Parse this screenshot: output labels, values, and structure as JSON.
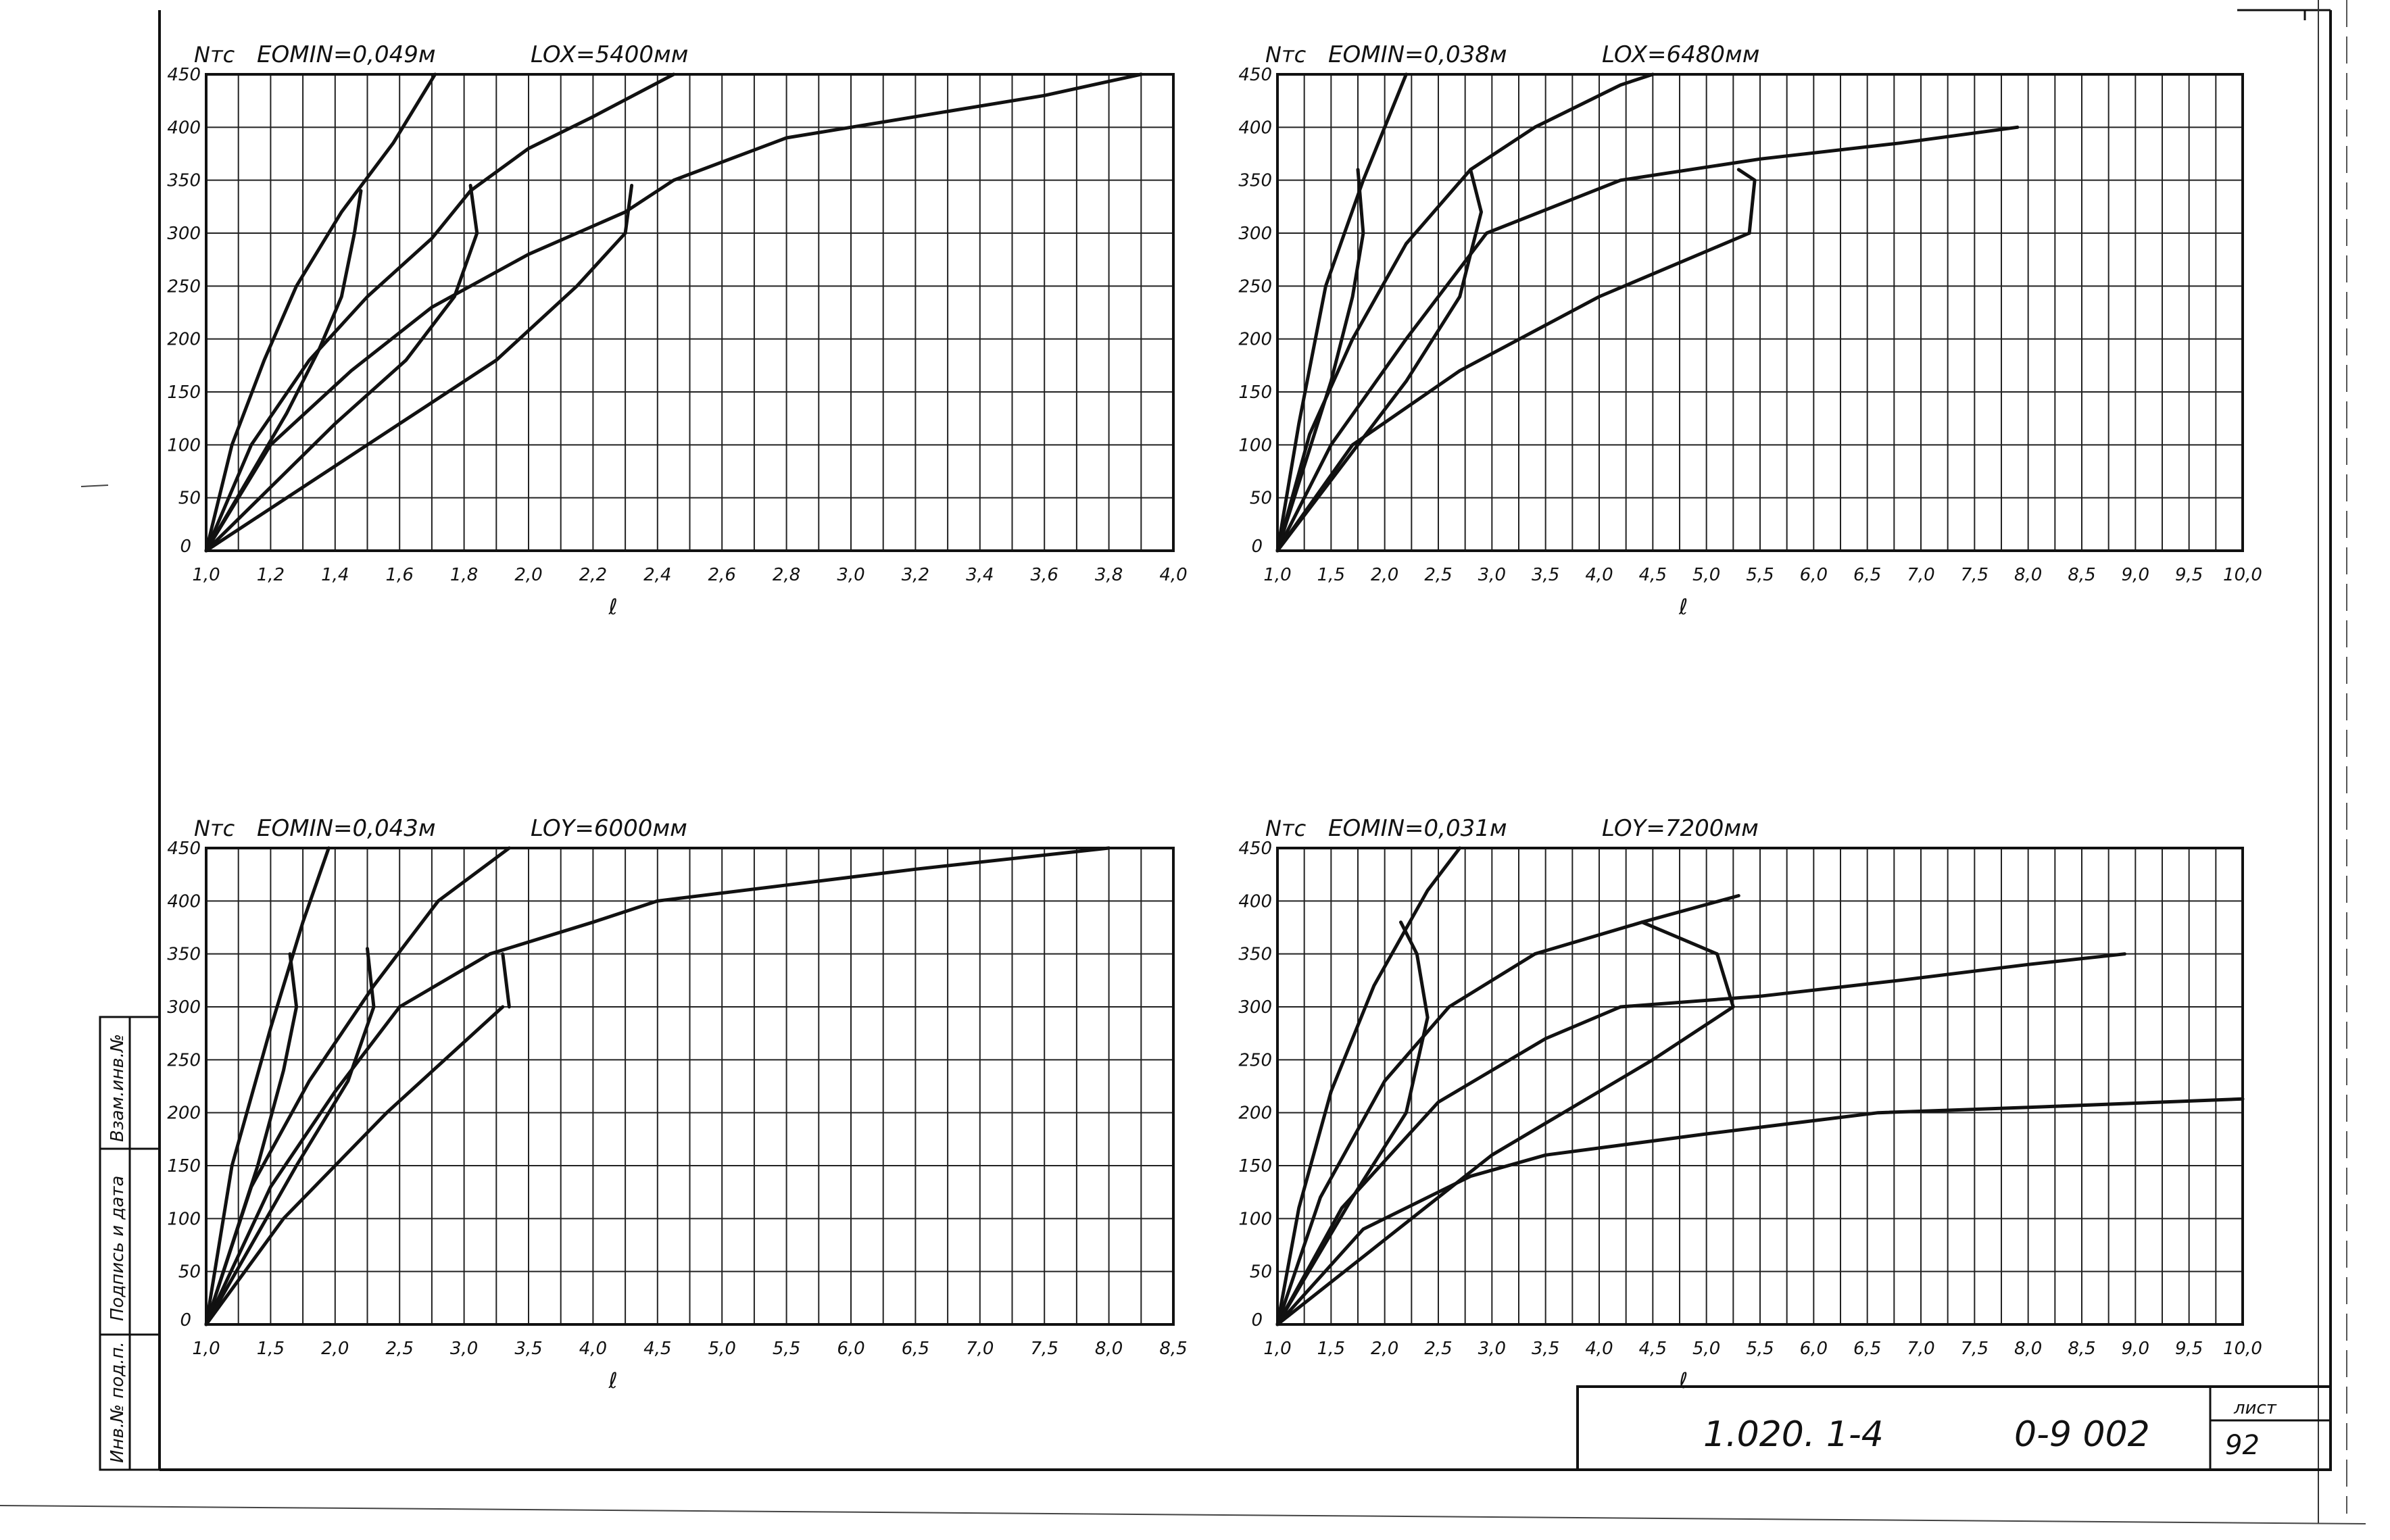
{
  "sheet": {
    "designation": "1.020. 1-4",
    "code": "0-9 002",
    "sheet_label": "лист",
    "sheet_number": "92",
    "side_stamp": [
      "Инв.№ под.п.",
      "Подпись и дата",
      "Взам.инв.№"
    ]
  },
  "chart_data": [
    {
      "type": "line",
      "ylabel": "Nтс",
      "xlabel": "ℓ",
      "annotations": [
        "EOMIN=0,049м",
        "LOX=5400мм"
      ],
      "xlim": [
        1.0,
        4.0
      ],
      "ylim": [
        0,
        450
      ],
      "grid": true,
      "x_ticks": [
        "1,0",
        "1,2",
        "1,4",
        "1,6",
        "1,8",
        "2,0",
        "2,2",
        "2,4",
        "2,6",
        "2,8",
        "3,0",
        "3,2",
        "3,4",
        "3,6",
        "3,8",
        "4,0"
      ],
      "y_ticks": [
        "0",
        "50",
        "100",
        "150",
        "200",
        "250",
        "300",
        "350",
        "400",
        "450"
      ],
      "series": [
        {
          "points": [
            [
              1.0,
              0
            ],
            [
              1.08,
              100
            ],
            [
              1.18,
              180
            ],
            [
              1.28,
              250
            ],
            [
              1.42,
              320
            ],
            [
              1.58,
              385
            ],
            [
              1.71,
              450
            ]
          ]
        },
        {
          "points": [
            [
              1.0,
              0
            ],
            [
              1.14,
              100
            ],
            [
              1.32,
              180
            ],
            [
              1.5,
              240
            ],
            [
              1.7,
              295
            ],
            [
              1.82,
              340
            ],
            [
              2.0,
              380
            ],
            [
              2.2,
              410
            ],
            [
              2.45,
              450
            ]
          ]
        },
        {
          "points": [
            [
              1.0,
              0
            ],
            [
              1.2,
              100
            ],
            [
              1.45,
              170
            ],
            [
              1.7,
              230
            ],
            [
              2.0,
              280
            ],
            [
              2.3,
              320
            ],
            [
              2.45,
              350
            ],
            [
              2.8,
              390
            ],
            [
              3.2,
              410
            ],
            [
              3.6,
              430
            ],
            [
              3.9,
              450
            ]
          ]
        },
        {
          "points": [
            [
              1.0,
              0
            ],
            [
              1.3,
              60
            ],
            [
              1.6,
              120
            ],
            [
              1.9,
              180
            ],
            [
              2.15,
              250
            ],
            [
              2.3,
              300
            ]
          ]
        },
        {
          "points": [
            [
              1.48,
              340
            ],
            [
              1.46,
              300
            ],
            [
              1.42,
              240
            ],
            [
              1.35,
              190
            ],
            [
              1.25,
              130
            ],
            [
              1.0,
              0
            ]
          ]
        },
        {
          "points": [
            [
              1.82,
              345
            ],
            [
              1.84,
              300
            ],
            [
              1.77,
              240
            ],
            [
              1.62,
              180
            ],
            [
              1.4,
              120
            ],
            [
              1.0,
              0
            ]
          ]
        },
        {
          "points": [
            [
              2.32,
              345
            ],
            [
              2.3,
              300
            ]
          ]
        }
      ]
    },
    {
      "type": "line",
      "ylabel": "Nтс",
      "xlabel": "ℓ",
      "annotations": [
        "EOMIN=0,038м",
        "LOX=6480мм"
      ],
      "xlim": [
        1.0,
        10.0
      ],
      "ylim": [
        0,
        450
      ],
      "grid": true,
      "x_ticks": [
        "1,0",
        "1,5",
        "2,0",
        "2,5",
        "3,0",
        "3,5",
        "4,0",
        "4,5",
        "5,0",
        "5,5",
        "6,0",
        "6,5",
        "7,0",
        "7,5",
        "8,0",
        "8,5",
        "9,0",
        "9,5",
        "10,0"
      ],
      "y_ticks": [
        "0",
        "50",
        "100",
        "150",
        "200",
        "250",
        "300",
        "350",
        "400",
        "450"
      ],
      "series": [
        {
          "points": [
            [
              1.0,
              0
            ],
            [
              1.2,
              120
            ],
            [
              1.45,
              250
            ],
            [
              1.8,
              350
            ],
            [
              2.2,
              450
            ]
          ]
        },
        {
          "points": [
            [
              1.0,
              0
            ],
            [
              1.3,
              110
            ],
            [
              1.7,
              200
            ],
            [
              2.2,
              290
            ],
            [
              2.8,
              360
            ],
            [
              3.4,
              400
            ],
            [
              4.2,
              440
            ],
            [
              4.5,
              450
            ]
          ]
        },
        {
          "points": [
            [
              1.0,
              0
            ],
            [
              1.5,
              100
            ],
            [
              2.2,
              200
            ],
            [
              2.95,
              300
            ],
            [
              4.2,
              350
            ],
            [
              5.5,
              370
            ],
            [
              6.8,
              385
            ],
            [
              7.9,
              400
            ]
          ]
        },
        {
          "points": [
            [
              1.0,
              0
            ],
            [
              1.7,
              100
            ],
            [
              2.7,
              170
            ],
            [
              4.0,
              240
            ],
            [
              5.4,
              300
            ]
          ]
        },
        {
          "points": [
            [
              1.75,
              360
            ],
            [
              1.8,
              300
            ],
            [
              1.7,
              240
            ],
            [
              1.5,
              160
            ],
            [
              1.0,
              0
            ]
          ]
        },
        {
          "points": [
            [
              2.8,
              360
            ],
            [
              2.9,
              320
            ],
            [
              2.7,
              240
            ],
            [
              2.2,
              160
            ],
            [
              1.0,
              0
            ]
          ]
        },
        {
          "points": [
            [
              5.3,
              360
            ],
            [
              5.45,
              350
            ],
            [
              5.4,
              300
            ]
          ]
        }
      ]
    },
    {
      "type": "line",
      "ylabel": "Nтс",
      "xlabel": "ℓ",
      "annotations": [
        "EOMIN=0,043м",
        "LOY=6000мм"
      ],
      "xlim": [
        1.0,
        8.5
      ],
      "ylim": [
        0,
        450
      ],
      "grid": true,
      "x_ticks": [
        "1,0",
        "1,5",
        "2,0",
        "2,5",
        "3,0",
        "3,5",
        "4,0",
        "4,5",
        "5,0",
        "5,5",
        "6,0",
        "6,5",
        "7,0",
        "7,5",
        "8,0",
        "8,5"
      ],
      "y_ticks": [
        "0",
        "50",
        "100",
        "150",
        "200",
        "250",
        "300",
        "350",
        "400",
        "450"
      ],
      "series": [
        {
          "points": [
            [
              1.0,
              0
            ],
            [
              1.2,
              150
            ],
            [
              1.5,
              280
            ],
            [
              1.75,
              380
            ],
            [
              1.95,
              450
            ]
          ]
        },
        {
          "points": [
            [
              1.0,
              0
            ],
            [
              1.35,
              130
            ],
            [
              1.8,
              230
            ],
            [
              2.3,
              320
            ],
            [
              2.8,
              400
            ],
            [
              3.35,
              450
            ]
          ]
        },
        {
          "points": [
            [
              1.0,
              0
            ],
            [
              1.5,
              130
            ],
            [
              2.0,
              220
            ],
            [
              2.5,
              300
            ],
            [
              3.2,
              350
            ],
            [
              4.0,
              380
            ],
            [
              4.5,
              400
            ],
            [
              5.5,
              415
            ],
            [
              6.5,
              430
            ],
            [
              8.0,
              450
            ]
          ]
        },
        {
          "points": [
            [
              1.0,
              0
            ],
            [
              1.6,
              100
            ],
            [
              2.4,
              200
            ],
            [
              3.3,
              300
            ]
          ]
        },
        {
          "points": [
            [
              1.65,
              350
            ],
            [
              1.7,
              300
            ],
            [
              1.6,
              240
            ],
            [
              1.4,
              150
            ],
            [
              1.0,
              0
            ]
          ]
        },
        {
          "points": [
            [
              2.25,
              355
            ],
            [
              2.3,
              300
            ],
            [
              2.1,
              230
            ],
            [
              1.7,
              150
            ],
            [
              1.0,
              0
            ]
          ]
        },
        {
          "points": [
            [
              3.3,
              350
            ],
            [
              3.35,
              300
            ]
          ]
        }
      ]
    },
    {
      "type": "line",
      "ylabel": "Nтс",
      "xlabel": "ℓ",
      "annotations": [
        "EOMIN=0,031м",
        "LOY=7200мм"
      ],
      "xlim": [
        1.0,
        10.0
      ],
      "ylim": [
        0,
        450
      ],
      "grid": true,
      "x_ticks": [
        "1,0",
        "1,5",
        "2,0",
        "2,5",
        "3,0",
        "3,5",
        "4,0",
        "4,5",
        "5,0",
        "5,5",
        "6,0",
        "6,5",
        "7,0",
        "7,5",
        "8,0",
        "8,5",
        "9,0",
        "9,5",
        "10,0"
      ],
      "y_ticks": [
        "0",
        "50",
        "100",
        "150",
        "200",
        "250",
        "300",
        "350",
        "400",
        "450"
      ],
      "series": [
        {
          "points": [
            [
              1.0,
              0
            ],
            [
              1.2,
              110
            ],
            [
              1.5,
              220
            ],
            [
              1.9,
              320
            ],
            [
              2.4,
              410
            ],
            [
              2.7,
              450
            ]
          ]
        },
        {
          "points": [
            [
              1.0,
              0
            ],
            [
              1.4,
              120
            ],
            [
              2.0,
              230
            ],
            [
              2.6,
              300
            ],
            [
              3.4,
              350
            ],
            [
              4.4,
              380
            ],
            [
              5.3,
              405
            ]
          ]
        },
        {
          "points": [
            [
              1.0,
              0
            ],
            [
              1.6,
              110
            ],
            [
              2.5,
              210
            ],
            [
              3.5,
              270
            ],
            [
              4.2,
              300
            ],
            [
              5.5,
              310
            ],
            [
              6.8,
              325
            ],
            [
              8.0,
              340
            ],
            [
              8.9,
              350
            ]
          ]
        },
        {
          "points": [
            [
              1.0,
              0
            ],
            [
              1.8,
              90
            ],
            [
              2.8,
              140
            ],
            [
              3.5,
              160
            ],
            [
              5.0,
              180
            ],
            [
              6.6,
              200
            ],
            [
              8.0,
              205
            ],
            [
              10.0,
              213
            ]
          ]
        },
        {
          "points": [
            [
              2.15,
              380
            ],
            [
              2.3,
              350
            ],
            [
              2.4,
              290
            ],
            [
              2.2,
              200
            ],
            [
              1.7,
              120
            ],
            [
              1.0,
              0
            ]
          ]
        },
        {
          "points": [
            [
              4.4,
              380
            ],
            [
              5.1,
              350
            ],
            [
              5.25,
              300
            ],
            [
              4.5,
              250
            ],
            [
              3.0,
              160
            ],
            [
              1.0,
              0
            ]
          ]
        }
      ]
    }
  ]
}
